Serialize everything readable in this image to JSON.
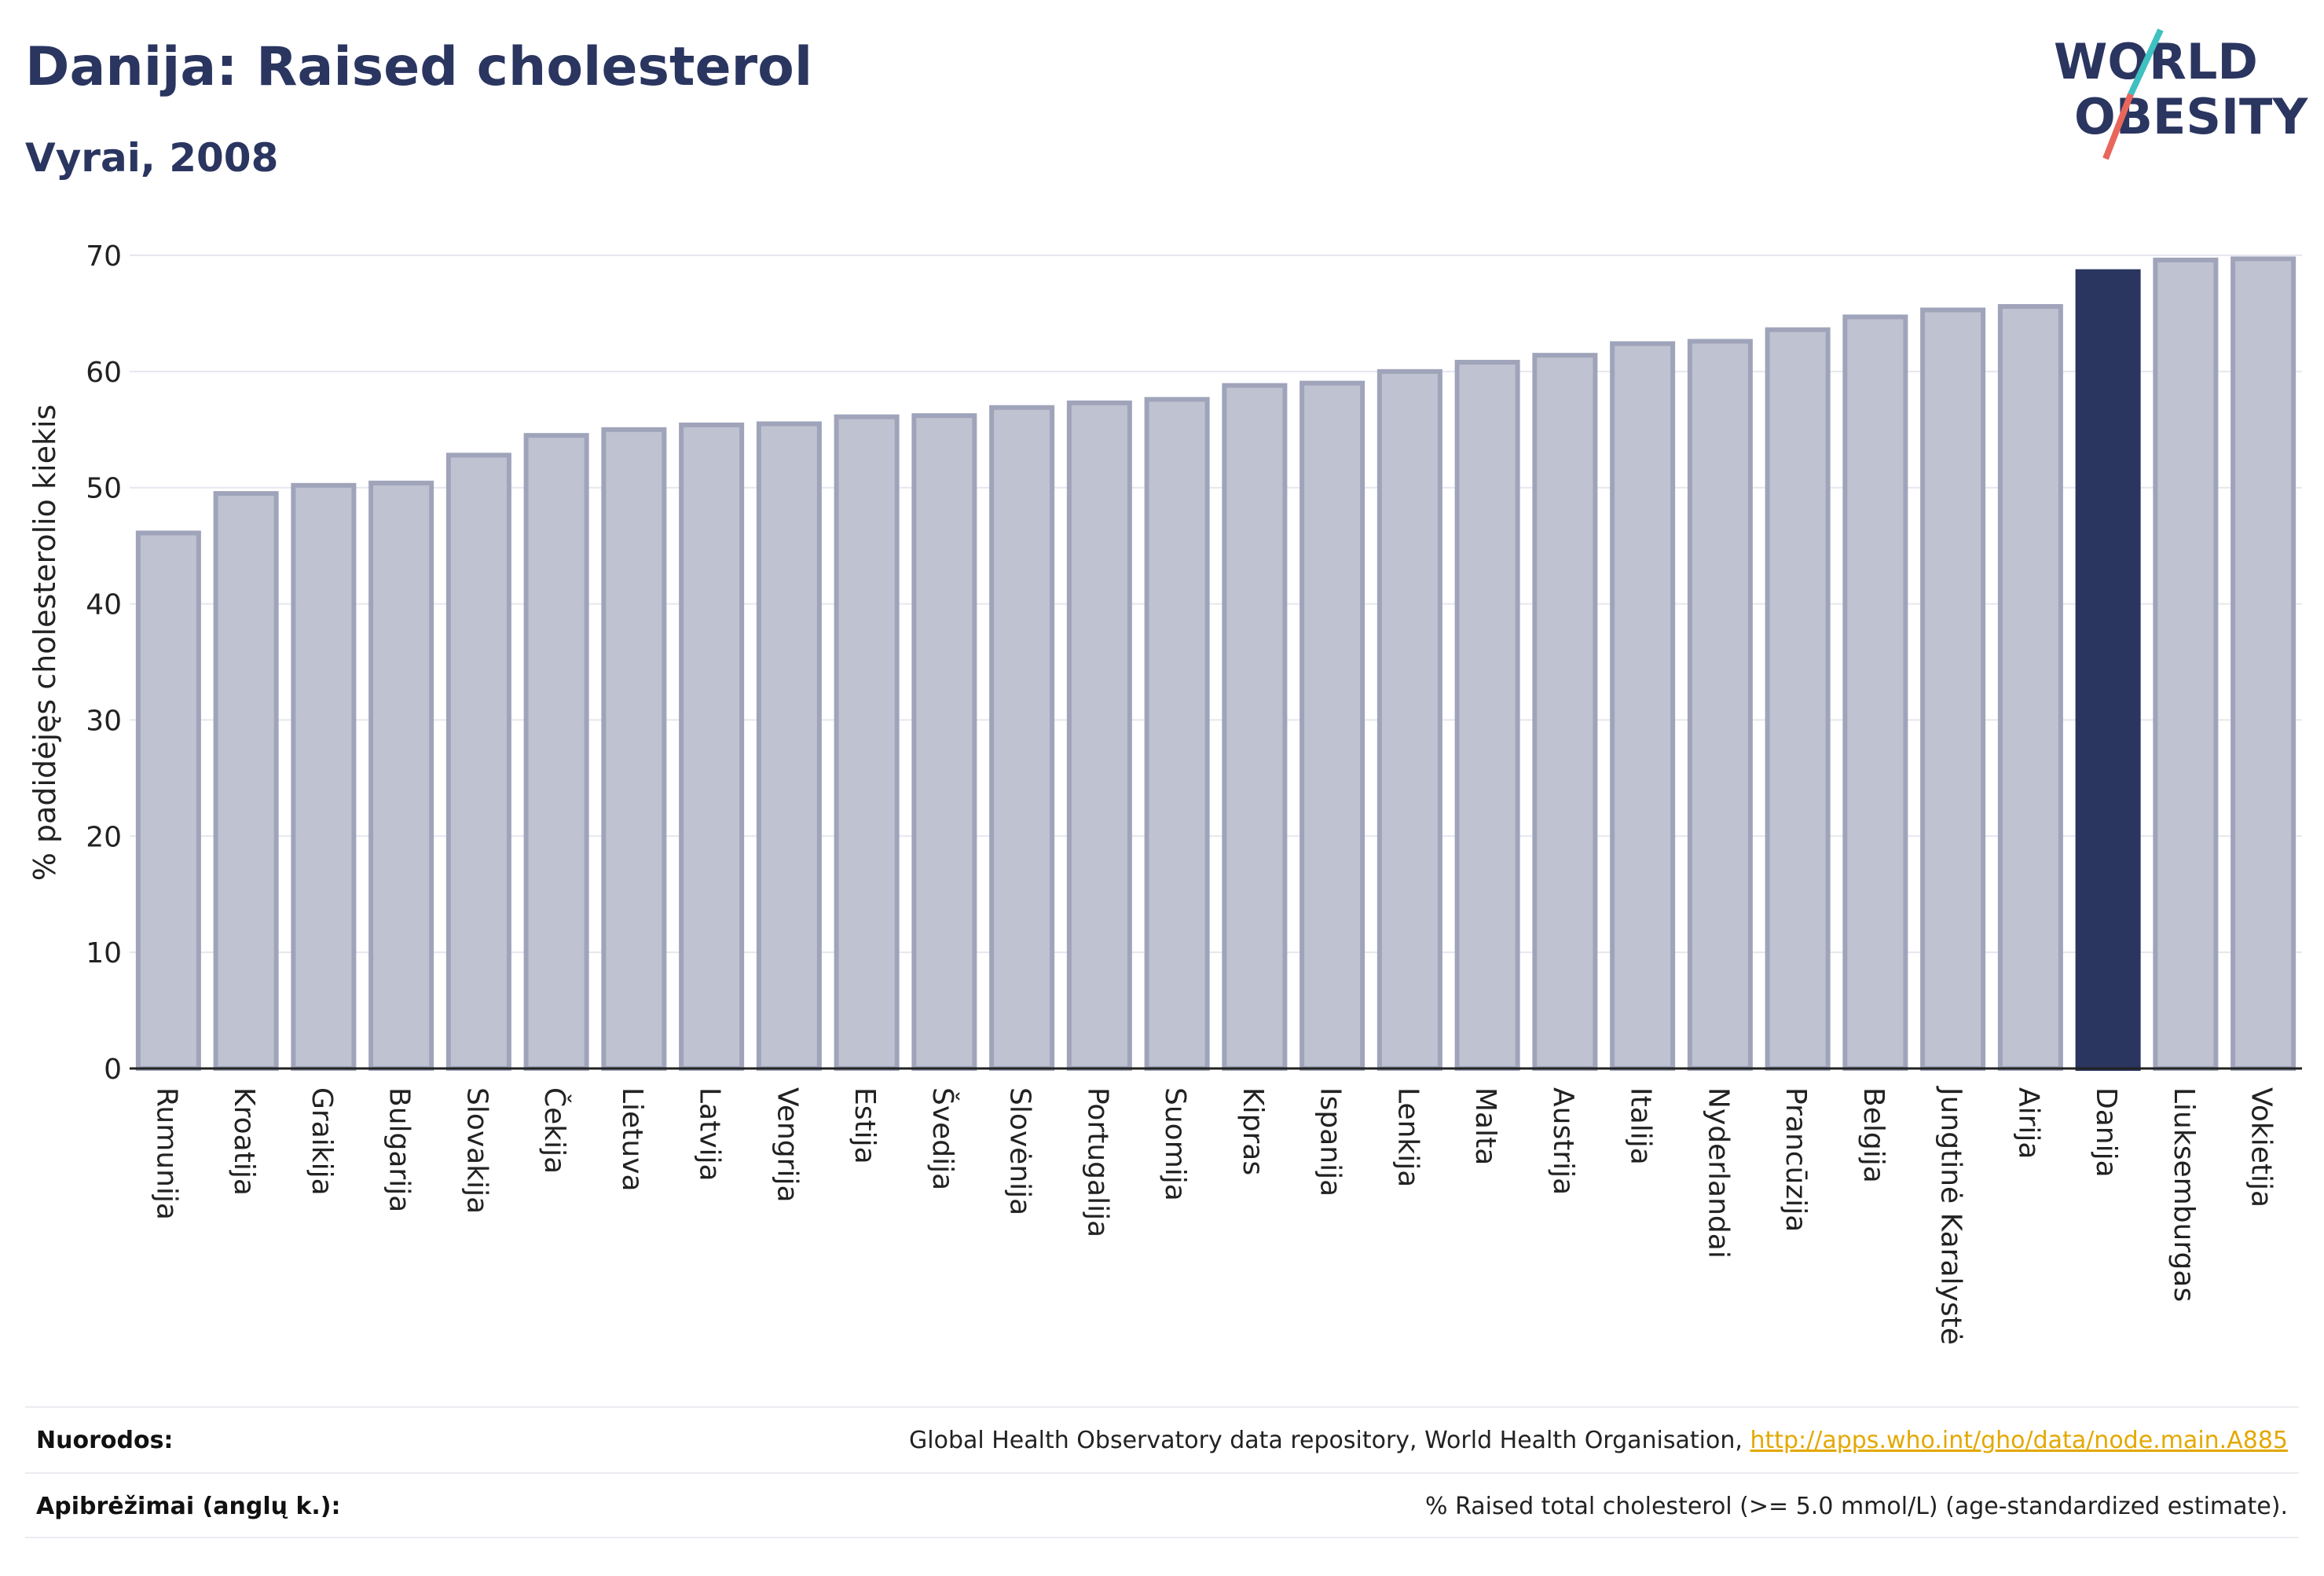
{
  "header": {
    "title": "Danija: Raised cholesterol",
    "subtitle": "Vyrai, 2008"
  },
  "logo": {
    "line1": "WORLD",
    "line2": "OBESITY",
    "colors": {
      "text": "#2a3560",
      "slash_red": "#e8665a",
      "slash_teal": "#3ec1c0"
    }
  },
  "chart_data": {
    "type": "bar",
    "ylabel": "% padidėjęs cholesterolio kiekis",
    "ylim": [
      0,
      70
    ],
    "yticks": [
      0,
      10,
      20,
      30,
      40,
      50,
      60,
      70
    ],
    "grid": true,
    "highlight": "Danija",
    "colors": {
      "bar": "#bfc2d0",
      "bar_edge": "#9fa4ba",
      "highlight": "#2a3560"
    },
    "categories": [
      "Rumunija",
      "Kroatija",
      "Graikija",
      "Bulgarija",
      "Slovakija",
      "Čekija",
      "Lietuva",
      "Latvija",
      "Vengrija",
      "Estija",
      "Švedija",
      "Slovėnija",
      "Portugalija",
      "Suomija",
      "Kipras",
      "Ispanija",
      "Lenkija",
      "Malta",
      "Austrija",
      "Italija",
      "Nyderlandai",
      "Prancūzija",
      "Belgija",
      "Jungtinė Karalystė",
      "Airija",
      "Danija",
      "Liuksemburgas",
      "Vokietija"
    ],
    "values": [
      46.1,
      49.5,
      50.2,
      50.4,
      52.8,
      54.5,
      55.0,
      55.4,
      55.5,
      56.1,
      56.2,
      56.9,
      57.3,
      57.6,
      58.8,
      59.0,
      60.0,
      60.8,
      61.4,
      62.4,
      62.6,
      63.6,
      64.7,
      65.3,
      65.6,
      68.6,
      69.6,
      69.7
    ]
  },
  "footer": {
    "sources_label": "Nuorodos:",
    "sources_text": "Global Health Observatory data repository, World Health Organisation, ",
    "sources_link": "http://apps.who.int/gho/data/node.main.A885",
    "definitions_label": "Apibrėžimai (anglų k.):",
    "definitions_text": "% Raised total cholesterol (>= 5.0 mmol/L) (age-standardized estimate)."
  }
}
